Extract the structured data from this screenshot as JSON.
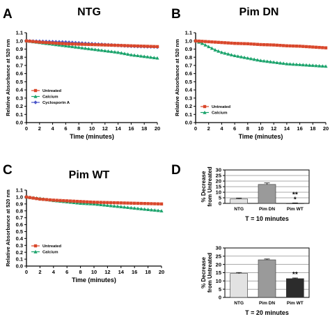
{
  "panels": [
    {
      "letter": "A",
      "title": "NTG",
      "chart_data": {
        "type": "line",
        "xlabel": "Time (minutes)",
        "ylabel": "Relative Absorbance at 520 nm",
        "xlim": [
          0,
          20
        ],
        "ylim": [
          0.0,
          1.1
        ],
        "xticks": [
          "0",
          "2",
          "4",
          "6",
          "8",
          "10",
          "12",
          "14",
          "16",
          "18",
          "20"
        ],
        "yticks": [
          "0.0",
          "0.1",
          "0.2",
          "0.3",
          "0.4",
          "0.5",
          "0.6",
          "0.7",
          "0.8",
          "0.9",
          "1.0",
          "1.1"
        ],
        "legend_position": "bottom-left",
        "series": [
          {
            "name": "Untreated",
            "color": "#d9472b",
            "marker": "square",
            "x": [
              0,
              2,
              4,
              6,
              8,
              10,
              12,
              14,
              16,
              18,
              20
            ],
            "y": [
              1.0,
              0.985,
              0.975,
              0.965,
              0.96,
              0.955,
              0.95,
              0.945,
              0.94,
              0.935,
              0.93
            ]
          },
          {
            "name": "Calcium",
            "color": "#1aa36b",
            "marker": "triangle",
            "x": [
              0,
              2,
              4,
              6,
              8,
              10,
              12,
              14,
              16,
              18,
              20
            ],
            "y": [
              1.0,
              0.98,
              0.96,
              0.94,
              0.92,
              0.9,
              0.88,
              0.86,
              0.83,
              0.81,
              0.79
            ]
          },
          {
            "name": "Cyclosporin A",
            "color": "#4a55c8",
            "marker": "diamond",
            "x": [
              0,
              2,
              4,
              6,
              8,
              10,
              12,
              14,
              16,
              18,
              20
            ],
            "y": [
              1.0,
              0.995,
              0.99,
              0.985,
              0.975,
              0.965,
              0.955,
              0.945,
              0.935,
              0.93,
              0.925
            ]
          }
        ]
      }
    },
    {
      "letter": "B",
      "title": "Pim DN",
      "chart_data": {
        "type": "line",
        "xlabel": "Time (minutes)",
        "ylabel": "Relative Absorbance at 520 nm",
        "xlim": [
          0,
          20
        ],
        "ylim": [
          0.0,
          1.1
        ],
        "xticks": [
          "0",
          "2",
          "4",
          "6",
          "8",
          "10",
          "12",
          "14",
          "16",
          "18",
          "20"
        ],
        "yticks": [
          "0.0",
          "0.1",
          "0.2",
          "0.3",
          "0.4",
          "0.5",
          "0.6",
          "0.7",
          "0.8",
          "0.9",
          "1.0",
          "1.1"
        ],
        "legend_position": "bottom-left",
        "series": [
          {
            "name": "Untreated",
            "color": "#d9472b",
            "marker": "square",
            "x": [
              0,
              2,
              4,
              6,
              8,
              10,
              12,
              14,
              16,
              18,
              20
            ],
            "y": [
              1.0,
              0.99,
              0.98,
              0.97,
              0.965,
              0.955,
              0.95,
              0.94,
              0.935,
              0.925,
              0.915
            ]
          },
          {
            "name": "Calcium",
            "color": "#1aa36b",
            "marker": "triangle",
            "x": [
              0,
              1,
              2,
              3,
              4,
              6,
              8,
              10,
              12,
              14,
              16,
              18,
              20
            ],
            "y": [
              1.0,
              0.97,
              0.93,
              0.89,
              0.86,
              0.82,
              0.79,
              0.76,
              0.74,
              0.72,
              0.71,
              0.7,
              0.69
            ]
          }
        ]
      }
    },
    {
      "letter": "C",
      "title": "Pim WT",
      "chart_data": {
        "type": "line",
        "xlabel": "Time (minutes)",
        "ylabel": "Relative Absorbance at 520 nm",
        "xlim": [
          0,
          20
        ],
        "ylim": [
          0.0,
          1.1
        ],
        "xticks": [
          "0",
          "2",
          "4",
          "6",
          "8",
          "10",
          "12",
          "14",
          "16",
          "18",
          "20"
        ],
        "yticks": [
          "0.0",
          "0.1",
          "0.2",
          "0.3",
          "0.4",
          "0.5",
          "0.6",
          "0.7",
          "0.8",
          "0.9",
          "1.0",
          "1.1"
        ],
        "legend_position": "bottom-left",
        "series": [
          {
            "name": "Untreated",
            "color": "#d9472b",
            "marker": "square",
            "x": [
              0,
              2,
              4,
              6,
              8,
              10,
              12,
              14,
              16,
              18,
              20
            ],
            "y": [
              1.0,
              0.97,
              0.955,
              0.945,
              0.935,
              0.925,
              0.92,
              0.915,
              0.91,
              0.905,
              0.9
            ]
          },
          {
            "name": "Calcium",
            "color": "#1aa36b",
            "marker": "triangle",
            "x": [
              0,
              2,
              4,
              6,
              8,
              10,
              12,
              14,
              16,
              18,
              20
            ],
            "y": [
              1.0,
              0.98,
              0.95,
              0.93,
              0.91,
              0.9,
              0.88,
              0.86,
              0.84,
              0.82,
              0.8
            ]
          }
        ]
      }
    },
    {
      "letter": "D",
      "title": "",
      "chart_data": [
        {
          "type": "bar",
          "caption": "T = 10 minutes",
          "ylabel": "% Decrease from Untreated",
          "ylim": [
            0,
            30
          ],
          "yticks": [
            "0",
            "5",
            "10",
            "15",
            "20",
            "25",
            "30"
          ],
          "categories": [
            "NTG",
            "Pim DN",
            "Pim WT"
          ],
          "values": [
            4.0,
            17.0,
            0.2
          ],
          "errors": [
            0.5,
            1.3,
            0.2
          ],
          "colors": [
            "#e2e2e2",
            "#9a9a9a",
            "#2c2c2c"
          ],
          "annotations": [
            {
              "category": "Pim WT",
              "text": "**\n*"
            }
          ]
        },
        {
          "type": "bar",
          "caption": "T = 20 minutes",
          "ylabel": "% Decrease from Untreated",
          "ylim": [
            0,
            30
          ],
          "yticks": [
            "0",
            "5",
            "10",
            "15",
            "20",
            "25",
            "30"
          ],
          "categories": [
            "NTG",
            "Pim DN",
            "Pim WT"
          ],
          "values": [
            14.5,
            22.8,
            11.4
          ],
          "errors": [
            0.6,
            0.5,
            0.4
          ],
          "colors": [
            "#e2e2e2",
            "#9a9a9a",
            "#2c2c2c"
          ],
          "annotations": [
            {
              "category": "Pim WT",
              "text": "**"
            }
          ]
        }
      ]
    }
  ]
}
